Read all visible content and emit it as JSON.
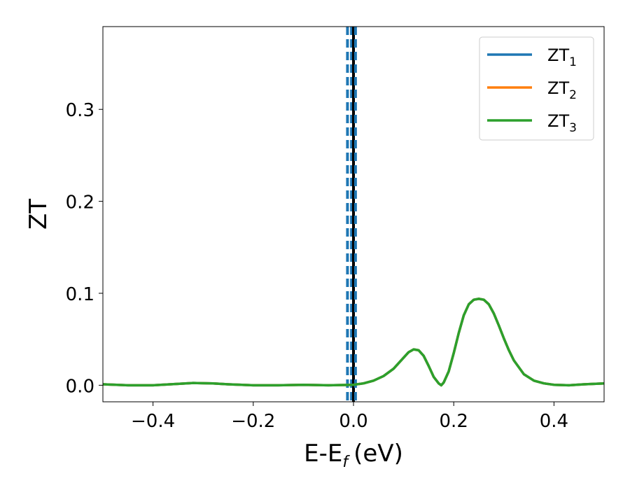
{
  "chart_data": {
    "type": "line",
    "xlabel": "E-E",
    "xlabel_sub": "f",
    "xlabel_unit": "(eV)",
    "ylabel": "ZT",
    "xlim": [
      -0.5,
      0.5
    ],
    "ylim": [
      -0.018,
      0.39
    ],
    "xticks": [
      -0.4,
      -0.2,
      0.0,
      0.2,
      0.4
    ],
    "xtick_labels": [
      "−0.4",
      "−0.2",
      "0.0",
      "0.2",
      "0.4"
    ],
    "yticks": [
      0.0,
      0.1,
      0.2,
      0.3
    ],
    "ytick_labels": [
      "0.0",
      "0.1",
      "0.2",
      "0.3"
    ],
    "grid": false,
    "legend_position": "top-right",
    "vertical_lines": [
      {
        "x": -0.012,
        "style": "dashed",
        "color": "#1f77b4"
      },
      {
        "x": -0.004,
        "style": "dashed",
        "color": "#1f77b4"
      },
      {
        "x": 0.0,
        "style": "solid",
        "color": "#000000"
      },
      {
        "x": 0.004,
        "style": "dashed",
        "color": "#1f77b4"
      }
    ],
    "x": [
      -0.5,
      -0.45,
      -0.4,
      -0.35,
      -0.32,
      -0.28,
      -0.25,
      -0.2,
      -0.15,
      -0.1,
      -0.05,
      0.0,
      0.02,
      0.04,
      0.06,
      0.08,
      0.1,
      0.11,
      0.12,
      0.13,
      0.14,
      0.15,
      0.16,
      0.17,
      0.175,
      0.18,
      0.19,
      0.2,
      0.21,
      0.22,
      0.23,
      0.24,
      0.25,
      0.26,
      0.27,
      0.28,
      0.29,
      0.3,
      0.31,
      0.32,
      0.34,
      0.36,
      0.38,
      0.4,
      0.43,
      0.46,
      0.5
    ],
    "series": [
      {
        "name": "ZT",
        "sub": "1",
        "color": "#1f77b4",
        "values": [
          0.001,
          0.0,
          0.0,
          0.0015,
          0.0025,
          0.002,
          0.001,
          0.0,
          0.0,
          0.0005,
          0.0,
          0.0005,
          0.002,
          0.005,
          0.01,
          0.018,
          0.03,
          0.036,
          0.039,
          0.038,
          0.032,
          0.021,
          0.009,
          0.002,
          0.0,
          0.003,
          0.015,
          0.035,
          0.057,
          0.076,
          0.088,
          0.093,
          0.094,
          0.093,
          0.088,
          0.078,
          0.065,
          0.051,
          0.038,
          0.027,
          0.012,
          0.005,
          0.002,
          0.0005,
          0.0,
          0.001,
          0.002
        ]
      },
      {
        "name": "ZT",
        "sub": "2",
        "color": "#ff7f0e",
        "values": [
          0.001,
          0.0,
          0.0,
          0.0015,
          0.0025,
          0.002,
          0.001,
          0.0,
          0.0,
          0.0005,
          0.0,
          0.0005,
          0.002,
          0.005,
          0.01,
          0.018,
          0.03,
          0.036,
          0.039,
          0.038,
          0.032,
          0.021,
          0.009,
          0.002,
          0.0,
          0.003,
          0.015,
          0.035,
          0.057,
          0.076,
          0.088,
          0.093,
          0.094,
          0.093,
          0.088,
          0.078,
          0.065,
          0.051,
          0.038,
          0.027,
          0.012,
          0.005,
          0.002,
          0.0005,
          0.0,
          0.001,
          0.002
        ]
      },
      {
        "name": "ZT",
        "sub": "3",
        "color": "#2ca02c",
        "values": [
          0.001,
          0.0,
          0.0,
          0.0015,
          0.0025,
          0.002,
          0.001,
          0.0,
          0.0,
          0.0005,
          0.0,
          0.0005,
          0.002,
          0.005,
          0.01,
          0.018,
          0.03,
          0.036,
          0.039,
          0.038,
          0.032,
          0.021,
          0.009,
          0.002,
          0.0,
          0.003,
          0.015,
          0.035,
          0.057,
          0.076,
          0.088,
          0.093,
          0.094,
          0.093,
          0.088,
          0.078,
          0.065,
          0.051,
          0.038,
          0.027,
          0.012,
          0.005,
          0.002,
          0.0005,
          0.0,
          0.001,
          0.002
        ]
      }
    ]
  }
}
